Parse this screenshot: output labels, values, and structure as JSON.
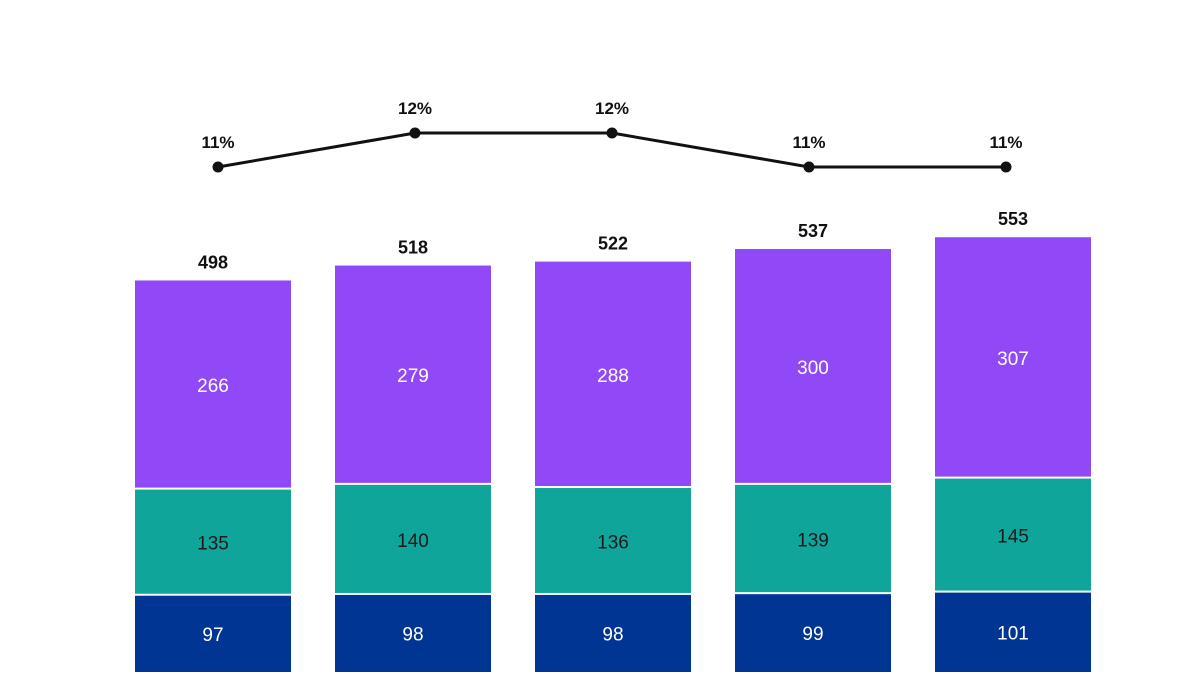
{
  "chart_data": {
    "type": "bar",
    "stacked": true,
    "categories": [
      "",
      "",
      "",
      "",
      ""
    ],
    "series": [
      {
        "values": [
          97,
          98,
          98,
          99,
          101
        ],
        "color": "#003594",
        "label_color": "#ffffff"
      },
      {
        "values": [
          135,
          140,
          136,
          139,
          145
        ],
        "color": "#10a59a",
        "label_color": "#1a1a1a"
      },
      {
        "values": [
          266,
          279,
          288,
          300,
          307
        ],
        "color": "#9149f8",
        "label_color": "#ffffff"
      }
    ],
    "totals": [
      498,
      518,
      522,
      537,
      553
    ],
    "line": {
      "values": [
        11,
        12,
        12,
        11,
        11
      ],
      "labels": [
        "11%",
        "12%",
        "12%",
        "11%",
        "11%"
      ],
      "color": "#111111"
    },
    "ylim": [
      0,
      600
    ],
    "grid": false,
    "legend": "none"
  }
}
